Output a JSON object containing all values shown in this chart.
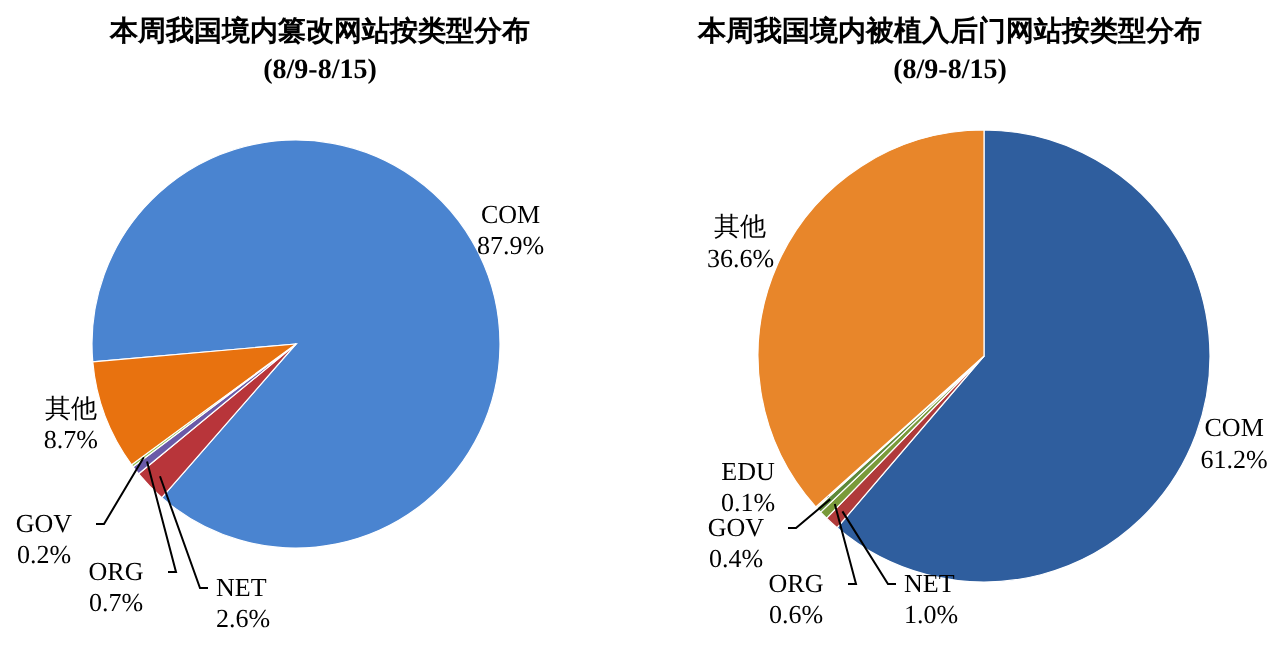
{
  "chart_data": [
    {
      "type": "pie",
      "title": "本周我国境内篡改网站按类型分布",
      "subtitle": "(8/9-8/15)",
      "categories": [
        "COM",
        "NET",
        "ORG",
        "GOV",
        "其他"
      ],
      "values": [
        87.9,
        2.6,
        0.7,
        0.2,
        8.7
      ],
      "colors": [
        "#4a84d0",
        "#b8353a",
        "#6a5aa8",
        "#8cbf4a",
        "#e8720f"
      ],
      "value_labels": [
        "87.9%",
        "2.6%",
        "0.7%",
        "0.2%",
        "8.7%"
      ]
    },
    {
      "type": "pie",
      "title": "本周我国境内被植入后门网站按类型分布",
      "subtitle": "(8/9-8/15)",
      "categories": [
        "COM",
        "NET",
        "ORG",
        "GOV",
        "EDU",
        "其他"
      ],
      "values": [
        61.2,
        1.0,
        0.6,
        0.4,
        0.1,
        36.6
      ],
      "colors": [
        "#2f5e9e",
        "#b03a3a",
        "#7a9a3a",
        "#5e8a3a",
        "#f2cfa0",
        "#e8862a"
      ],
      "value_labels": [
        "61.2%",
        "1.0%",
        "0.6%",
        "0.4%",
        "0.1%",
        "36.6%"
      ]
    }
  ]
}
